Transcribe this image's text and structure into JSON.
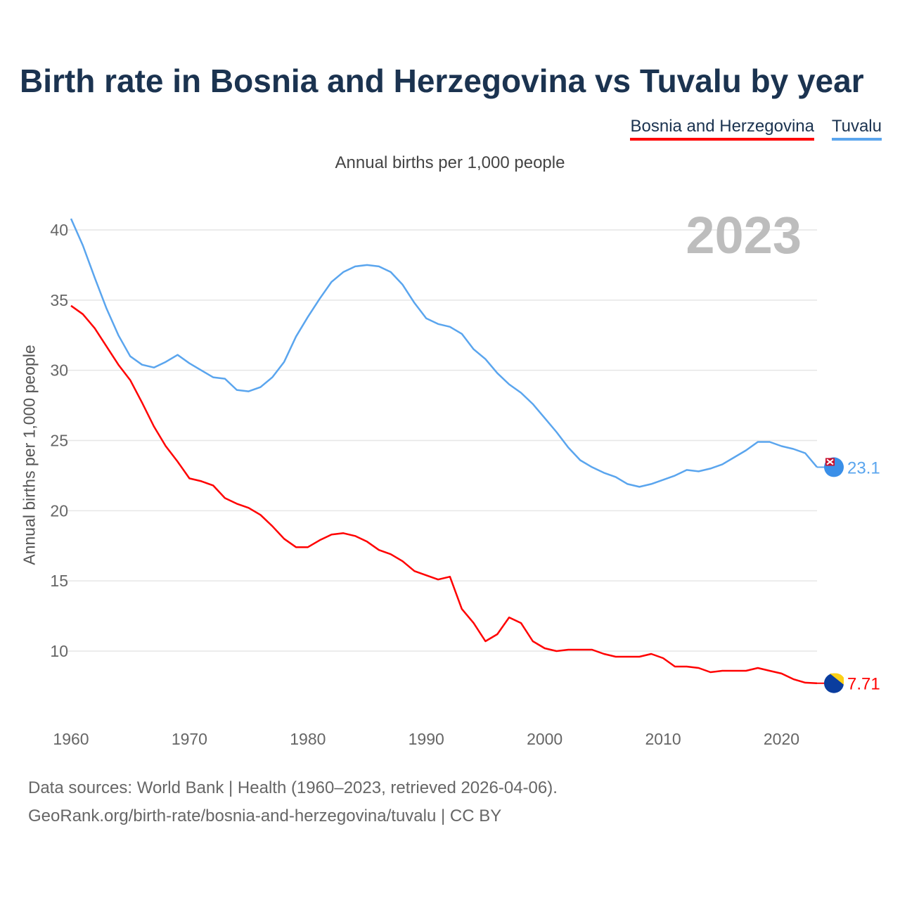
{
  "chart_data": {
    "type": "line",
    "title": "Birth rate in Bosnia and Herzegovina vs Tuvalu by year",
    "subtitle": "Annual births per 1,000 people",
    "ylabel": "Annual births per 1,000 people",
    "xlabel": "",
    "year_label": "2023",
    "xlim": [
      1960,
      2023
    ],
    "ylim": [
      6,
      41
    ],
    "x_ticks": [
      1960,
      1970,
      1980,
      1990,
      2000,
      2010,
      2020
    ],
    "y_ticks": [
      10,
      15,
      20,
      25,
      30,
      35,
      40
    ],
    "grid": true,
    "legend_position": "top-right",
    "x": [
      1960,
      1961,
      1962,
      1963,
      1964,
      1965,
      1966,
      1967,
      1968,
      1969,
      1970,
      1971,
      1972,
      1973,
      1974,
      1975,
      1976,
      1977,
      1978,
      1979,
      1980,
      1981,
      1982,
      1983,
      1984,
      1985,
      1986,
      1987,
      1988,
      1989,
      1990,
      1991,
      1992,
      1993,
      1994,
      1995,
      1996,
      1997,
      1998,
      1999,
      2000,
      2001,
      2002,
      2003,
      2004,
      2005,
      2006,
      2007,
      2008,
      2009,
      2010,
      2011,
      2012,
      2013,
      2014,
      2015,
      2016,
      2017,
      2018,
      2019,
      2020,
      2021,
      2022,
      2023
    ],
    "series": [
      {
        "name": "Bosnia and Herzegovina",
        "color": "#ff0000",
        "end_label": "7.71",
        "values": [
          34.6,
          34.0,
          33.0,
          31.7,
          30.4,
          29.3,
          27.7,
          26.0,
          24.6,
          23.5,
          22.3,
          22.1,
          21.8,
          20.9,
          20.5,
          20.2,
          19.7,
          18.9,
          18.0,
          17.4,
          17.4,
          17.9,
          18.3,
          18.4,
          18.2,
          17.8,
          17.2,
          16.9,
          16.4,
          15.7,
          15.4,
          15.1,
          15.3,
          13.0,
          12.0,
          10.7,
          11.2,
          12.4,
          12.0,
          10.7,
          10.2,
          10.0,
          10.1,
          10.1,
          10.1,
          9.8,
          9.6,
          9.6,
          9.6,
          9.8,
          9.5,
          8.9,
          8.9,
          8.8,
          8.5,
          8.6,
          8.6,
          8.6,
          8.8,
          8.6,
          8.4,
          8.0,
          7.75,
          7.71
        ]
      },
      {
        "name": "Tuvalu",
        "color": "#5aa5ee",
        "end_label": "23.1",
        "values": [
          40.8,
          38.9,
          36.6,
          34.4,
          32.5,
          31.0,
          30.4,
          30.2,
          30.6,
          31.1,
          30.5,
          30.0,
          29.5,
          29.4,
          28.6,
          28.5,
          28.8,
          29.5,
          30.6,
          32.4,
          33.8,
          35.1,
          36.3,
          37.0,
          37.4,
          37.5,
          37.4,
          37.0,
          36.1,
          34.8,
          33.7,
          33.3,
          33.1,
          32.6,
          31.5,
          30.8,
          29.8,
          29.0,
          28.4,
          27.6,
          26.6,
          25.6,
          24.5,
          23.6,
          23.1,
          22.7,
          22.4,
          21.9,
          21.7,
          21.9,
          22.2,
          22.5,
          22.9,
          22.8,
          23.0,
          23.3,
          23.8,
          24.3,
          24.9,
          24.9,
          24.6,
          24.4,
          24.1,
          23.1
        ]
      }
    ]
  },
  "footer": {
    "line1": "Data sources: World Bank | Health (1960–2023, retrieved 2026-04-06).",
    "line2": "GeoRank.org/birth-rate/bosnia-and-herzegovina/tuvalu | CC BY"
  }
}
